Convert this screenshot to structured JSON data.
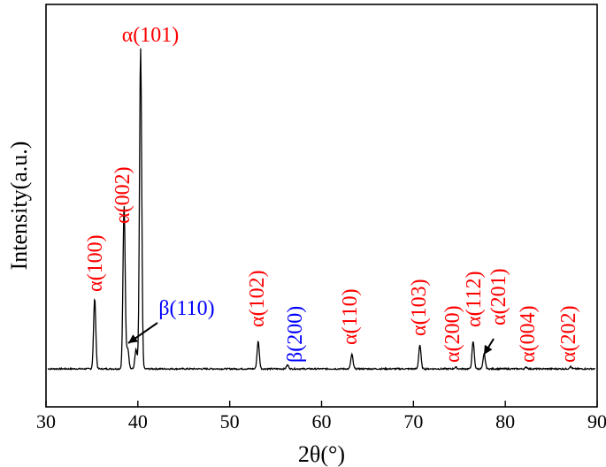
{
  "chart_data": {
    "type": "line",
    "title": "",
    "xlabel": "2θ(°)",
    "ylabel": "Intensity(a.u.)",
    "xlim": [
      30,
      90
    ],
    "ylim": [
      0,
      100
    ],
    "xticks": [
      30,
      40,
      50,
      60,
      70,
      80,
      90
    ],
    "yticks_shown": false,
    "grid": false,
    "legend": "none",
    "series": [
      {
        "baseline": 3,
        "line_color": "#000000",
        "peaks": [
          {
            "x": 35.3,
            "y": 22
          },
          {
            "x": 38.5,
            "y": 51
          },
          {
            "x": 38.9,
            "y": 6.5
          },
          {
            "x": 39.8,
            "y": 6
          },
          {
            "x": 40.3,
            "y": 100
          },
          {
            "x": 53.1,
            "y": 8.5
          },
          {
            "x": 56.3,
            "y": 1.2
          },
          {
            "x": 63.3,
            "y": 4.5
          },
          {
            "x": 70.7,
            "y": 7.5
          },
          {
            "x": 74.6,
            "y": 0.5
          },
          {
            "x": 76.5,
            "y": 8.5
          },
          {
            "x": 77.7,
            "y": 4.5
          },
          {
            "x": 82.3,
            "y": 0.5
          },
          {
            "x": 87.1,
            "y": 0.7
          }
        ]
      }
    ],
    "annotations": [
      {
        "text": "α(100)",
        "x": 35.3,
        "phase": "alpha",
        "rotated": true
      },
      {
        "text": "α(002)",
        "x": 38.5,
        "phase": "alpha",
        "rotated": true
      },
      {
        "text": "α(101)",
        "x": 40.3,
        "phase": "alpha",
        "rotated": false
      },
      {
        "text": "β(110)",
        "x": 38.9,
        "phase": "beta",
        "rotated": false,
        "arrow": true
      },
      {
        "text": "α(102)",
        "x": 53.1,
        "phase": "alpha",
        "rotated": true
      },
      {
        "text": "β(200)",
        "x": 56.3,
        "phase": "beta",
        "rotated": true
      },
      {
        "text": "α(110)",
        "x": 63.3,
        "phase": "alpha",
        "rotated": true
      },
      {
        "text": "α(103)",
        "x": 70.7,
        "phase": "alpha",
        "rotated": true
      },
      {
        "text": "α(200)",
        "x": 74.6,
        "phase": "alpha",
        "rotated": true
      },
      {
        "text": "α(112)",
        "x": 76.5,
        "phase": "alpha",
        "rotated": true
      },
      {
        "text": "α(201)",
        "x": 77.7,
        "phase": "alpha",
        "rotated": true,
        "arrow": true
      },
      {
        "text": "α(004)",
        "x": 82.3,
        "phase": "alpha",
        "rotated": true
      },
      {
        "text": "α(202)",
        "x": 87.1,
        "phase": "alpha",
        "rotated": true
      }
    ],
    "colors": {
      "alpha": "#ff0000",
      "beta": "#0000ff",
      "line": "#000000",
      "axis": "#000000"
    }
  }
}
